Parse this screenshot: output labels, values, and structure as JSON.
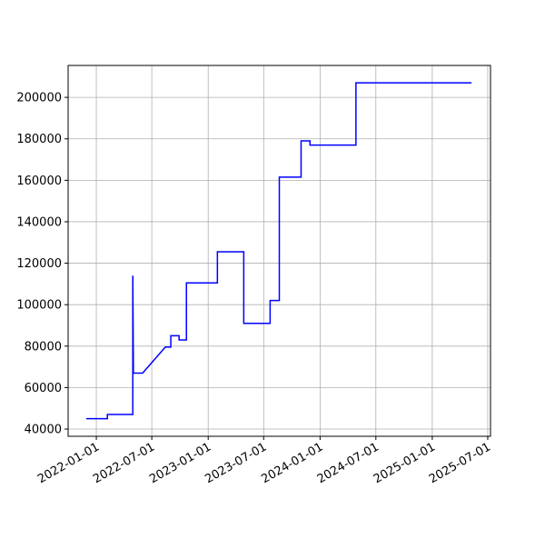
{
  "chart_data": {
    "type": "line",
    "x": [
      "2021-11-29",
      "2022-02-06",
      "2022-02-06",
      "2022-04-30",
      "2022-04-30",
      "2022-05-02",
      "2022-06-01",
      "2022-08-14",
      "2022-09-01",
      "2022-09-01",
      "2022-09-28",
      "2022-09-28",
      "2022-10-22",
      "2022-10-22",
      "2023-01-31",
      "2023-01-31",
      "2023-04-27",
      "2023-04-27",
      "2023-07-22",
      "2023-07-22",
      "2023-08-21",
      "2023-08-21",
      "2023-10-31",
      "2023-10-31",
      "2023-11-29",
      "2023-11-29",
      "2024-04-27",
      "2024-04-27",
      "2025-05-09"
    ],
    "series": [
      {
        "color": "#0000ff",
        "values": [
          45000,
          45000,
          47000,
          47000,
          114000,
          67000,
          67000,
          79500,
          79500,
          85000,
          85000,
          83000,
          83000,
          110500,
          110500,
          125500,
          125500,
          91000,
          91000,
          102000,
          102000,
          161500,
          161500,
          179000,
          179000,
          177000,
          177000,
          207000,
          207000
        ]
      }
    ],
    "xlim": [
      "2021-10-01",
      "2025-07-10"
    ],
    "xticks": [
      "2022-01-01",
      "2022-07-01",
      "2023-01-01",
      "2023-07-01",
      "2024-01-01",
      "2024-07-01",
      "2025-01-01",
      "2025-07-01"
    ],
    "ylim": [
      36500,
      215400
    ],
    "yticks": [
      40000,
      60000,
      80000,
      100000,
      120000,
      140000,
      160000,
      180000,
      200000
    ],
    "grid": true
  }
}
